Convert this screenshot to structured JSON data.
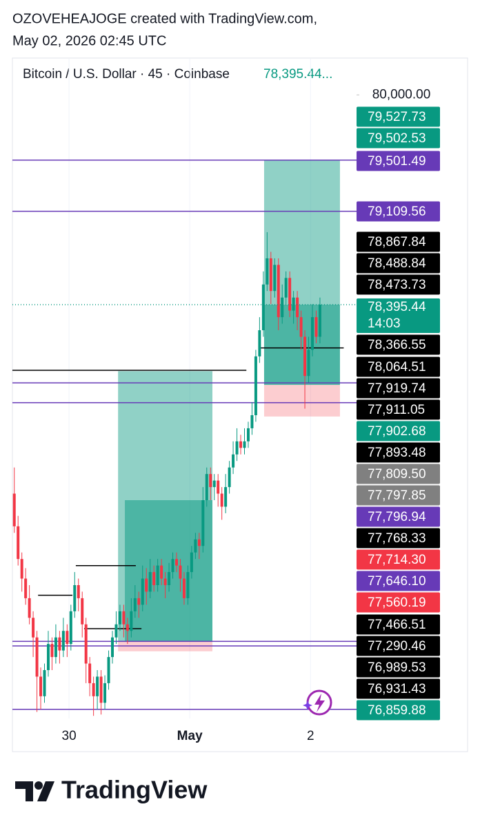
{
  "header": {
    "creator_line": "OZOVEHEAJOGE created with TradingView.com,",
    "date_line": "May 02, 2026 02:45 UTC"
  },
  "footer": {
    "brand": "TradingView"
  },
  "chart_data": {
    "type": "candlestick",
    "title": "Bitcoin / U.S. Dollar · 45 · Coinbase",
    "last_price_label": "78,395.44...",
    "up_color": "#089981",
    "down_color": "#f23645",
    "open": [
      76950,
      76700,
      76450,
      76300,
      76150,
      76000,
      75850,
      75550,
      75400,
      75600,
      75800,
      75700,
      75850,
      75750,
      75900,
      75800,
      76050,
      76250,
      76150,
      75950,
      75650,
      75500,
      75400,
      75550,
      75350,
      75500,
      75700,
      75850,
      75950,
      76050,
      75950,
      75900,
      76050,
      76150,
      76100,
      76300,
      76200,
      76350,
      76250,
      76400,
      76300,
      76250,
      76350,
      76450,
      76400,
      76300,
      76150,
      76350,
      76500,
      76600,
      76550,
      76900,
      77100,
      77000,
      77050,
      76950,
      76850,
      77000,
      77150,
      77250,
      77350,
      77300,
      77350,
      77450,
      77550,
      78000,
      78200,
      78550,
      78750,
      78500,
      78700,
      78300,
      78450,
      78600,
      78350,
      78450,
      78300,
      78150,
      77850,
      78050,
      78300,
      78150
    ],
    "high": [
      77150,
      76780,
      76500,
      76380,
      76250,
      76050,
      75900,
      75620,
      75650,
      75900,
      75850,
      75950,
      75900,
      76000,
      75950,
      76100,
      76350,
      76300,
      76200,
      76000,
      75700,
      75550,
      75600,
      75600,
      75560,
      75750,
      75900,
      76050,
      76100,
      76100,
      76000,
      76150,
      76250,
      76200,
      76400,
      76380,
      76450,
      76400,
      76450,
      76450,
      76350,
      76420,
      76500,
      76500,
      76450,
      76350,
      76400,
      76550,
      76650,
      76650,
      77000,
      77150,
      77150,
      77100,
      77100,
      77000,
      77100,
      77200,
      77350,
      77450,
      77400,
      77450,
      77500,
      77650,
      78050,
      78300,
      78650,
      78950,
      78800,
      78750,
      78750,
      78550,
      78650,
      78650,
      78500,
      78500,
      78350,
      78200,
      78150,
      78400,
      78350,
      78450
    ],
    "low": [
      76650,
      76400,
      76200,
      76100,
      75950,
      75700,
      75280,
      75300,
      75350,
      75550,
      75600,
      75650,
      75650,
      75700,
      75700,
      75750,
      76000,
      76050,
      75850,
      75500,
      75400,
      75250,
      75300,
      75260,
      75300,
      75450,
      75650,
      75800,
      75900,
      75850,
      75800,
      75850,
      76000,
      76000,
      76050,
      76100,
      76150,
      76200,
      76200,
      76250,
      76150,
      76200,
      76300,
      76350,
      76200,
      76100,
      76100,
      76300,
      76450,
      76450,
      76500,
      76850,
      76900,
      76900,
      76850,
      76750,
      76800,
      76950,
      77100,
      77200,
      77250,
      77250,
      77300,
      77400,
      77500,
      77950,
      78150,
      78500,
      78400,
      78450,
      78200,
      78250,
      78400,
      78300,
      78250,
      78200,
      78050,
      77600,
      77800,
      78000,
      78100,
      78100
    ],
    "close": [
      76700,
      76450,
      76300,
      76150,
      76000,
      75850,
      75550,
      75400,
      75600,
      75800,
      75700,
      75850,
      75750,
      75900,
      75800,
      76050,
      76250,
      76150,
      75950,
      75650,
      75500,
      75400,
      75550,
      75350,
      75500,
      75700,
      75850,
      75950,
      76050,
      75950,
      75900,
      76050,
      76150,
      76100,
      76300,
      76200,
      76350,
      76250,
      76400,
      76300,
      76250,
      76350,
      76450,
      76400,
      76300,
      76150,
      76350,
      76500,
      76600,
      76550,
      76900,
      77100,
      77000,
      77050,
      76950,
      76850,
      77000,
      77150,
      77250,
      77350,
      77300,
      77350,
      77450,
      77550,
      78000,
      78200,
      78550,
      78750,
      78500,
      78700,
      78300,
      78450,
      78600,
      78350,
      78450,
      78300,
      78150,
      77850,
      78050,
      78300,
      78150,
      78395.44
    ],
    "xlim": [
      -0.5,
      90.7
    ],
    "xticks": [
      {
        "value": 14.5,
        "label": "30"
      },
      {
        "value": 46.5,
        "label": "May"
      },
      {
        "value": 78.5,
        "label": "2"
      }
    ],
    "ylim": [
      75230,
      80277
    ],
    "yticks": [
      {
        "value": 80000,
        "label": "80,000.00"
      }
    ],
    "grid": true,
    "last_price": {
      "value": 78395.44,
      "color": "#089981"
    },
    "hlines": [
      {
        "value": 79501.49,
        "color": "#673ab7"
      },
      {
        "value": 79109.56,
        "color": "#673ab7"
      },
      {
        "value": 77796.94,
        "color": "#673ab7"
      },
      {
        "value": 77646.1,
        "color": "#673ab7"
      },
      {
        "value": 75820,
        "color": "#673ab7"
      },
      {
        "value": 75785,
        "color": "#673ab7"
      },
      {
        "value": 75300,
        "color": "#673ab7"
      },
      {
        "value": 77893.48,
        "color": "#000000",
        "x_range": [
          -0.5,
          61.5
        ]
      },
      {
        "value": 78064.51,
        "color": "#000000",
        "x_range": [
          65.3,
          87.3
        ]
      },
      {
        "value": 76399,
        "color": "#000000",
        "x_range": [
          16.3,
          32.2
        ]
      },
      {
        "value": 76173,
        "color": "#000000",
        "x_range": [
          6.3,
          15.4
        ]
      },
      {
        "value": 75917,
        "color": "#000000",
        "x_range": [
          18.5,
          33.7
        ]
      }
    ],
    "positions": [
      {
        "x_range": [
          27.5,
          52.5
        ],
        "target": 77887,
        "entry": 75822,
        "stop": 75744,
        "fill_x": 29.3,
        "fill_to": 76900
      },
      {
        "x_range": [
          66.2,
          86.3
        ],
        "target": 79501.49,
        "entry": 77782,
        "stop": 77540,
        "fill_x": 66.2,
        "fill_to": 78395.44
      }
    ],
    "price_labels": [
      {
        "label": "79,527.73",
        "color": "#089981"
      },
      {
        "label": "79,502.53",
        "color": "#089981"
      },
      {
        "label": "79,501.49",
        "color": "#673ab7"
      },
      {
        "label": "79,109.56",
        "color": "#673ab7"
      },
      {
        "label": "78,867.84",
        "color": "#000000"
      },
      {
        "label": "78,488.84",
        "color": "#000000"
      },
      {
        "label": "78,473.73",
        "color": "#000000"
      },
      {
        "label": "78,395.44",
        "countdown": "14:03",
        "color": "#089981"
      },
      {
        "label": "78,366.55",
        "color": "#000000"
      },
      {
        "label": "78,064.51",
        "color": "#000000"
      },
      {
        "label": "77,919.74",
        "color": "#000000"
      },
      {
        "label": "77,911.05",
        "color": "#000000"
      },
      {
        "label": "77,902.68",
        "color": "#089981"
      },
      {
        "label": "77,893.48",
        "color": "#000000"
      },
      {
        "label": "77,809.50",
        "color": "#808080"
      },
      {
        "label": "77,797.85",
        "color": "#808080"
      },
      {
        "label": "77,796.94",
        "color": "#673ab7"
      },
      {
        "label": "77,768.33",
        "color": "#000000"
      },
      {
        "label": "77,714.30",
        "color": "#f23645"
      },
      {
        "label": "77,646.10",
        "color": "#673ab7"
      },
      {
        "label": "77,560.19",
        "color": "#f23645"
      },
      {
        "label": "77,466.51",
        "color": "#000000"
      },
      {
        "label": "77,290.46",
        "color": "#000000"
      },
      {
        "label": "76,989.53",
        "color": "#000000"
      },
      {
        "label": "76,931.43",
        "color": "#000000"
      },
      {
        "label": "76,859.88",
        "color": "#089981"
      }
    ]
  }
}
